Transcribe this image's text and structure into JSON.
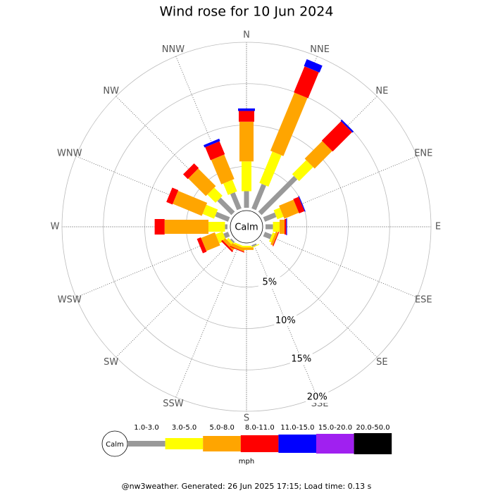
{
  "chart_data": {
    "type": "windrose",
    "title": "Wind rose for 10 Jun 2024",
    "center_label": "Calm",
    "categories": [
      "N",
      "NNE",
      "NE",
      "ENE",
      "E",
      "ESE",
      "SE",
      "SSE",
      "S",
      "SSW",
      "SW",
      "WSW",
      "W",
      "WNW",
      "NW",
      "NNW"
    ],
    "series": [
      {
        "name": "1.0-3.0",
        "color": "#999999",
        "values": [
          2.0,
          3.2,
          6.1,
          1.5,
          0.9,
          0.9,
          0,
          0.2,
          0,
          0,
          0.2,
          0.6,
          0.3,
          1.7,
          2.4,
          2.1
        ]
      },
      {
        "name": "3.0-5.0",
        "color": "#ffff00",
        "values": [
          3.6,
          4.1,
          2.4,
          0.8,
          0.8,
          0.3,
          0,
          0.1,
          0.2,
          0.2,
          0.3,
          0.9,
          2.0,
          1.5,
          1.4,
          1.5
        ]
      },
      {
        "name": "5.0-8.0",
        "color": "#ffa500",
        "values": [
          4.8,
          7.6,
          3.0,
          1.9,
          0.6,
          0.3,
          0,
          0,
          0.3,
          0.4,
          0.4,
          1.8,
          5.3,
          3.8,
          3.0,
          3.2
        ]
      },
      {
        "name": "8.0-11.0",
        "color": "#ff0000",
        "values": [
          1.3,
          3.4,
          3.3,
          0.7,
          0.2,
          0.1,
          0,
          0,
          0,
          0.1,
          0.2,
          0.5,
          1.2,
          0.8,
          0.8,
          1.7
        ]
      },
      {
        "name": "11.0-15.0",
        "color": "#0000ff",
        "values": [
          0.3,
          0.9,
          0.2,
          0.1,
          0.1,
          0,
          0,
          0,
          0,
          0,
          0,
          0,
          0,
          0,
          0,
          0.3
        ]
      },
      {
        "name": "15.0-20.0",
        "color": "#a020f0",
        "values": [
          0,
          0,
          0,
          0,
          0,
          0,
          0,
          0,
          0,
          0,
          0,
          0,
          0,
          0,
          0,
          0
        ]
      },
      {
        "name": "20.0-50.0",
        "color": "#000000",
        "values": [
          0,
          0,
          0,
          0,
          0,
          0,
          0,
          0,
          0,
          0,
          0,
          0,
          0,
          0,
          0,
          0
        ]
      }
    ],
    "ylim": [
      0,
      20
    ],
    "yticks": [
      {
        "value": 5,
        "label": "5%"
      },
      {
        "value": 10,
        "label": "10%"
      },
      {
        "value": 15,
        "label": "15%"
      },
      {
        "value": 20,
        "label": "20%"
      }
    ],
    "legend_unit": "mph",
    "footer": "@nw3weather.  Generated: 26 Jun 2025 17:15; Load time: 0.13 s"
  }
}
